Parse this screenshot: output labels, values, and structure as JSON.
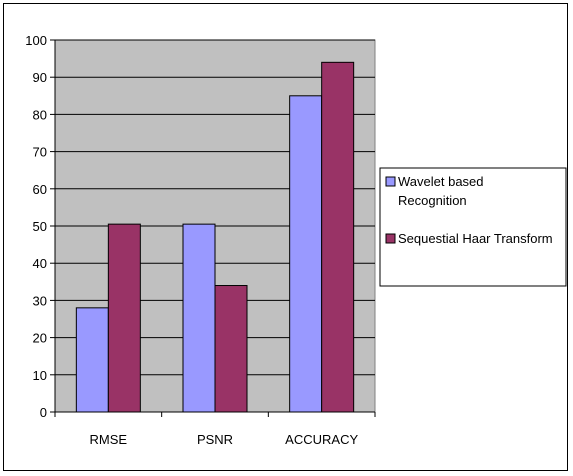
{
  "chart_data": {
    "type": "bar",
    "title": "",
    "xlabel": "",
    "ylabel": "",
    "ylim": [
      0,
      100
    ],
    "yticks": [
      0,
      10,
      20,
      30,
      40,
      50,
      60,
      70,
      80,
      90,
      100
    ],
    "categories": [
      "RMSE",
      "PSNR",
      "ACCURACY"
    ],
    "series": [
      {
        "name": "Wavelet based Recognition",
        "legend_lines": [
          "Wavelet based",
          "Recognition"
        ],
        "values": [
          28,
          50.5,
          85
        ],
        "color": "#9999ff"
      },
      {
        "name": "Sequestial Haar Transform",
        "legend_lines": [
          "Sequestial Haar Transform"
        ],
        "values": [
          50.5,
          34,
          94
        ],
        "color": "#993366"
      }
    ],
    "plot_background": "#c0c0c0",
    "grid": true,
    "legend_position": "right"
  }
}
